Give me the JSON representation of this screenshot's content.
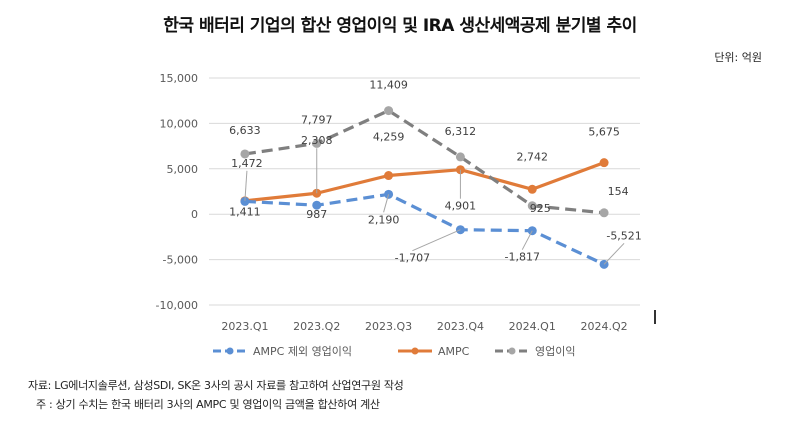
{
  "title": "한국 배터리 기업의 합산 영업이익 및 IRA 생산세액공제 분기별 추이",
  "unit_label": "단위: 억원",
  "notes": {
    "source": "자료: LG에너지솔루션, 삼성SDI, SK온 3사의 공시 자료를 참고하여 산업연구원 작성",
    "remark": "주 : 상기 수치는 한국 배터리 3사의 AMPC 및 영업이익 금액을 합산하여 계산"
  },
  "chart_data": {
    "type": "line",
    "title": "한국 배터리 기업의 합산 영업이익 및 IRA 생산세액공제 분기별 추이",
    "xlabel": "",
    "ylabel": "",
    "categories": [
      "2023.Q1",
      "2023.Q2",
      "2023.Q3",
      "2023.Q4",
      "2024.Q1",
      "2024.Q2"
    ],
    "ylim": [
      -10000,
      15000
    ],
    "yticks": [
      15000,
      10000,
      5000,
      0,
      -5000,
      -10000
    ],
    "ytick_labels": [
      "15,000",
      "10,000",
      "5,000",
      "0",
      "-5,000",
      "-10,000"
    ],
    "grid": true,
    "legend_position": "bottom",
    "series": [
      {
        "name": "AMPC 제외 영업이익",
        "color": "#5b8fd4",
        "dashed": true,
        "values": [
          1411,
          987,
          2190,
          -1707,
          -1817,
          -5521
        ],
        "labels": [
          "1,411",
          "987",
          "2,190",
          "-1,707",
          "-1,817",
          "-5,521"
        ]
      },
      {
        "name": "AMPC",
        "color": "#e07b39",
        "dashed": false,
        "values": [
          1472,
          2308,
          4259,
          4901,
          2742,
          5675
        ],
        "labels": [
          "1,472",
          "2,308",
          "4,259",
          "4,901",
          "2,742",
          "5,675"
        ]
      },
      {
        "name": "영업이익",
        "color": "#7f7f7f",
        "marker_color": "#a6a6a6",
        "dashed": true,
        "values": [
          6633,
          7797,
          11409,
          6312,
          925,
          154
        ],
        "labels": [
          "6,633",
          "7,797",
          "11,409",
          "6,312",
          "925",
          "154"
        ]
      }
    ]
  }
}
